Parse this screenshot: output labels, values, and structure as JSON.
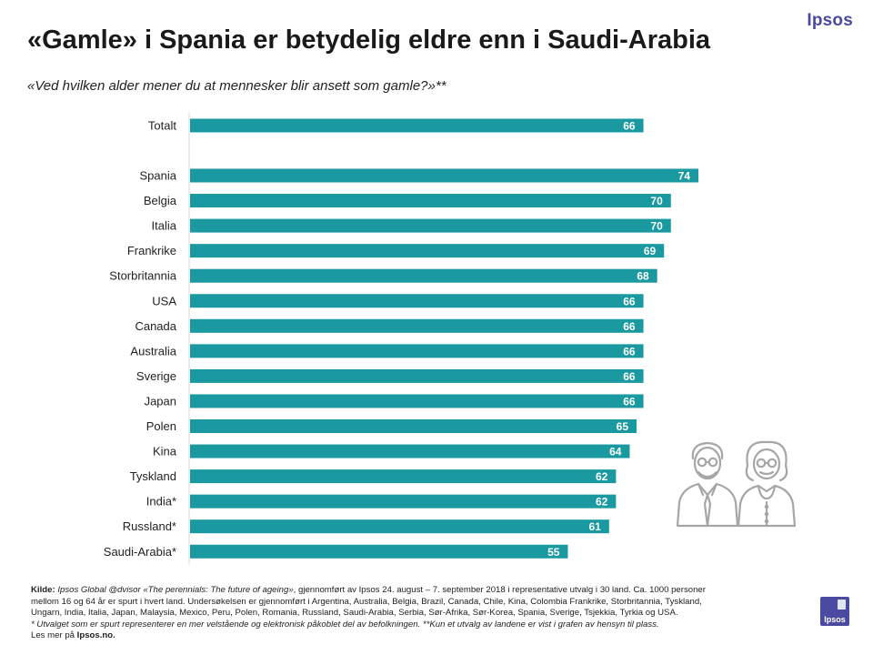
{
  "brand": "Ipsos",
  "title": "«Gamle» i Spania er betydelig eldre enn i Saudi-Arabia",
  "subtitle": "«Ved hvilken alder mener du at mennesker blir ansett som gamle?»**",
  "chart_data": {
    "type": "bar",
    "orientation": "horizontal",
    "categories": [
      "Totalt",
      "Spania",
      "Belgia",
      "Italia",
      "Frankrike",
      "Storbritannia",
      "USA",
      "Canada",
      "Australia",
      "Sverige",
      "Japan",
      "Polen",
      "Kina",
      "Tyskland",
      "India*",
      "Russland*",
      "Saudi-Arabia*"
    ],
    "values": [
      66,
      74,
      70,
      70,
      69,
      68,
      66,
      66,
      66,
      66,
      66,
      65,
      64,
      62,
      62,
      61,
      55
    ],
    "bar_color": "#1a9aa0",
    "label_color": "#ffffff",
    "xlim": [
      0,
      74
    ],
    "grid": false
  },
  "illustration": {
    "icon": "elderly-couple-icon",
    "color": "#a6a6a6"
  },
  "footer": {
    "source_label": "Kilde:",
    "source_title": "Ipsos Global @dvisor «The perennials: The future of ageing»",
    "source_rest": ", gjennomført av Ipsos 24. august – 7. september 2018 i representative utvalg i 30 land. Ca. 1000 personer",
    "line2": "mellom 16 og 64 år er spurt i hvert land. Undersøkelsen er gjennomført i Argentina, Australia, Belgia, Brazil, Canada, Chile, Kina, Colombia Frankrike, Storbritannia, Tyskland,",
    "line3": "Ungarn, India, Italia, Japan, Malaysia, Mexico, Peru, Polen, Romania, Russland, Saudi-Arabia, Serbia, Sør-Afrika, Sør-Korea, Spania, Sverige, Tsjekkia, Tyrkia og USA.",
    "line4": "* Utvalget som er spurt representerer en mer velstående og elektronisk påkoblet del av befolkningen. **Kun et utvalg av landene er vist i grafen av hensyn til plass.",
    "more_prefix": "Les mer på ",
    "more_link": "Ipsos.no."
  },
  "logo_text": "Ipsos"
}
